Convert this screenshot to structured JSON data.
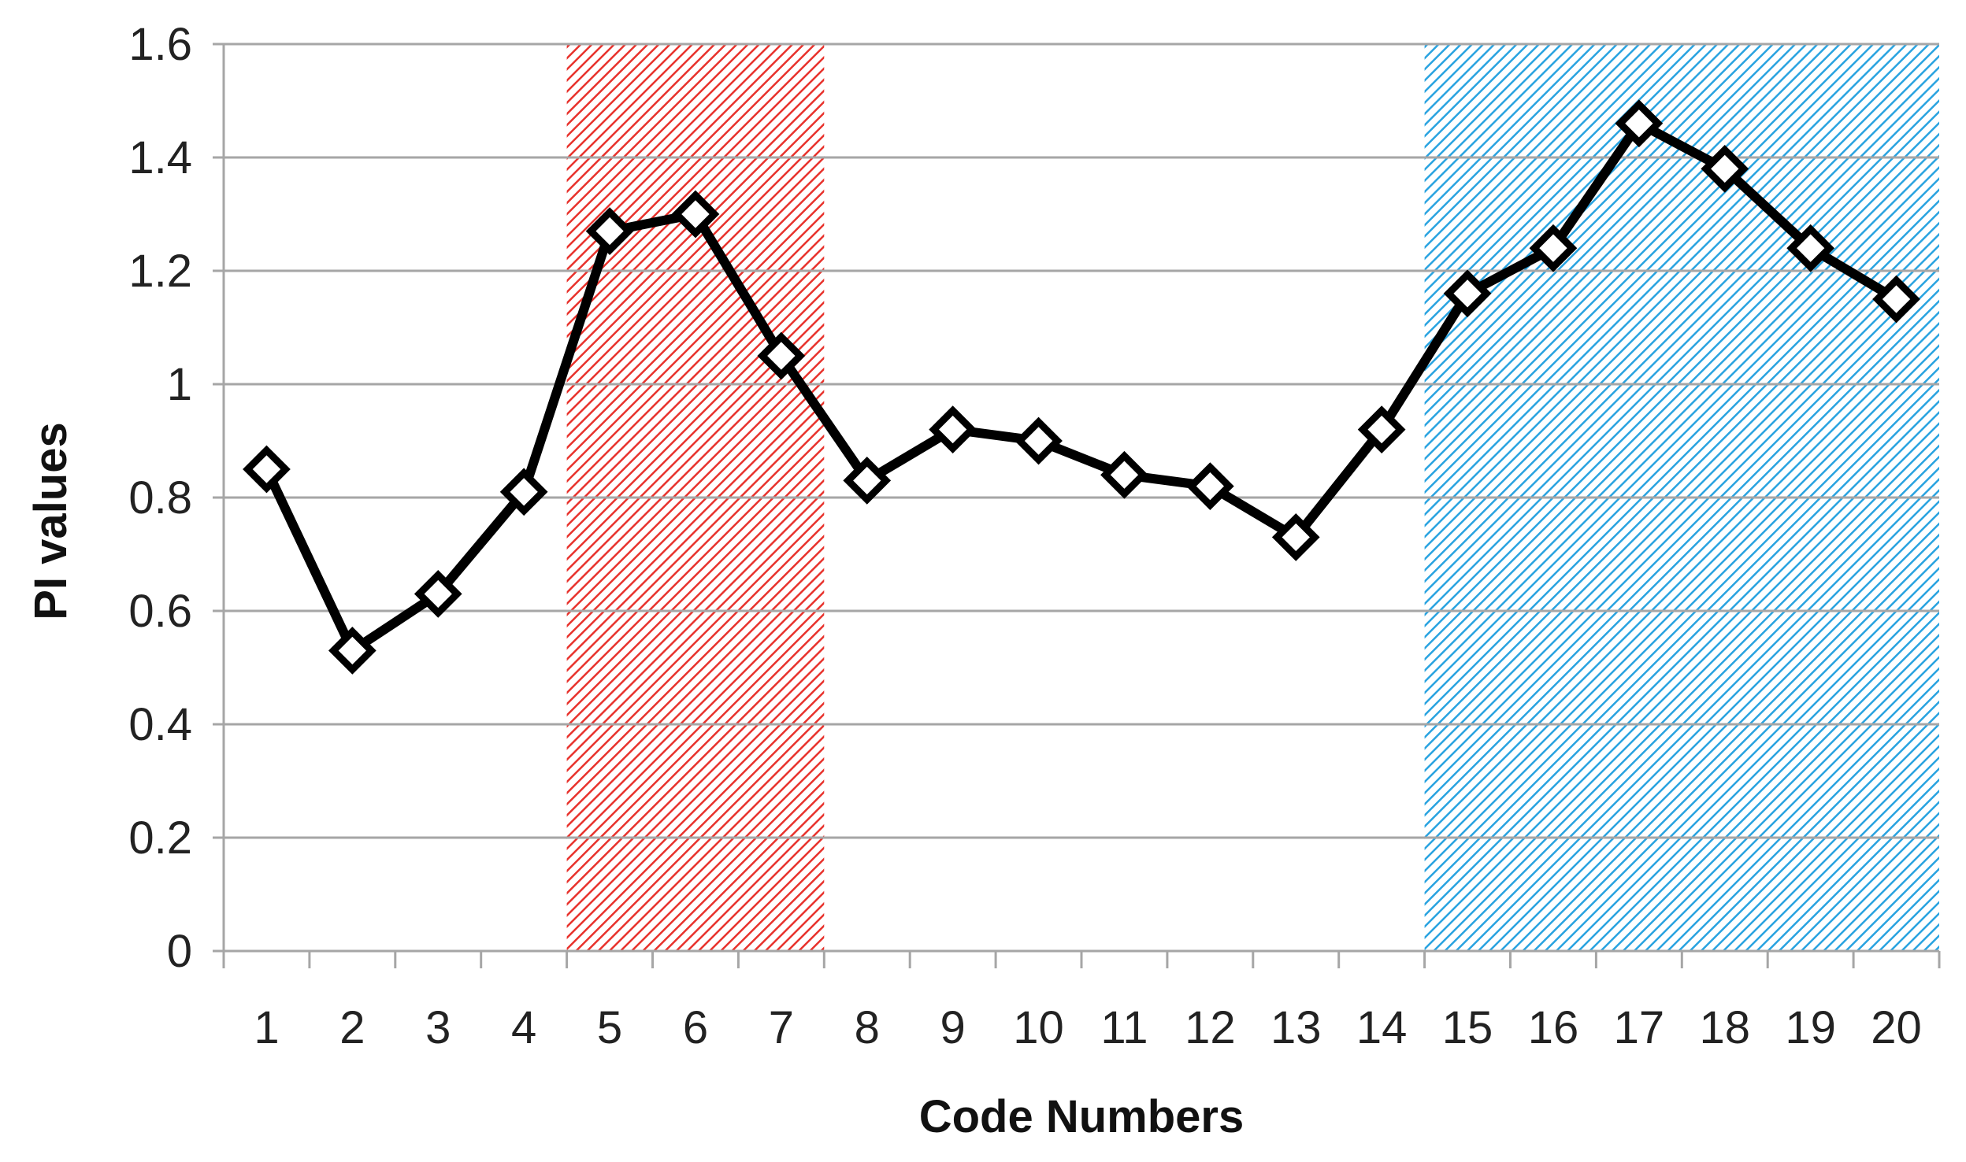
{
  "chart_data": {
    "type": "line",
    "xlabel": "Code Numbers",
    "ylabel": "PI values",
    "categories": [
      "1",
      "2",
      "3",
      "4",
      "5",
      "6",
      "7",
      "8",
      "9",
      "10",
      "11",
      "12",
      "13",
      "14",
      "15",
      "16",
      "17",
      "18",
      "19",
      "20"
    ],
    "series": [
      {
        "values": [
          0.85,
          0.53,
          0.63,
          0.81,
          1.27,
          1.3,
          1.05,
          0.83,
          0.92,
          0.9,
          0.84,
          0.82,
          0.73,
          0.92,
          1.16,
          1.24,
          1.46,
          1.38,
          1.24,
          1.15
        ],
        "color": "#000000",
        "marker": "diamond-open"
      }
    ],
    "ylim": [
      0,
      1.6
    ],
    "yticks": [
      "0",
      "0.2",
      "0.4",
      "0.6",
      "0.8",
      "1",
      "1.2",
      "1.4",
      "1.6"
    ],
    "grid": "horizontal",
    "highlight_regions": [
      {
        "from_code": "5",
        "to_code": "7",
        "color": "#e8322c",
        "pattern": "diagonal-hatch"
      },
      {
        "from_code": "15",
        "to_code": "20",
        "color": "#29a3e0",
        "pattern": "diagonal-hatch"
      }
    ]
  }
}
